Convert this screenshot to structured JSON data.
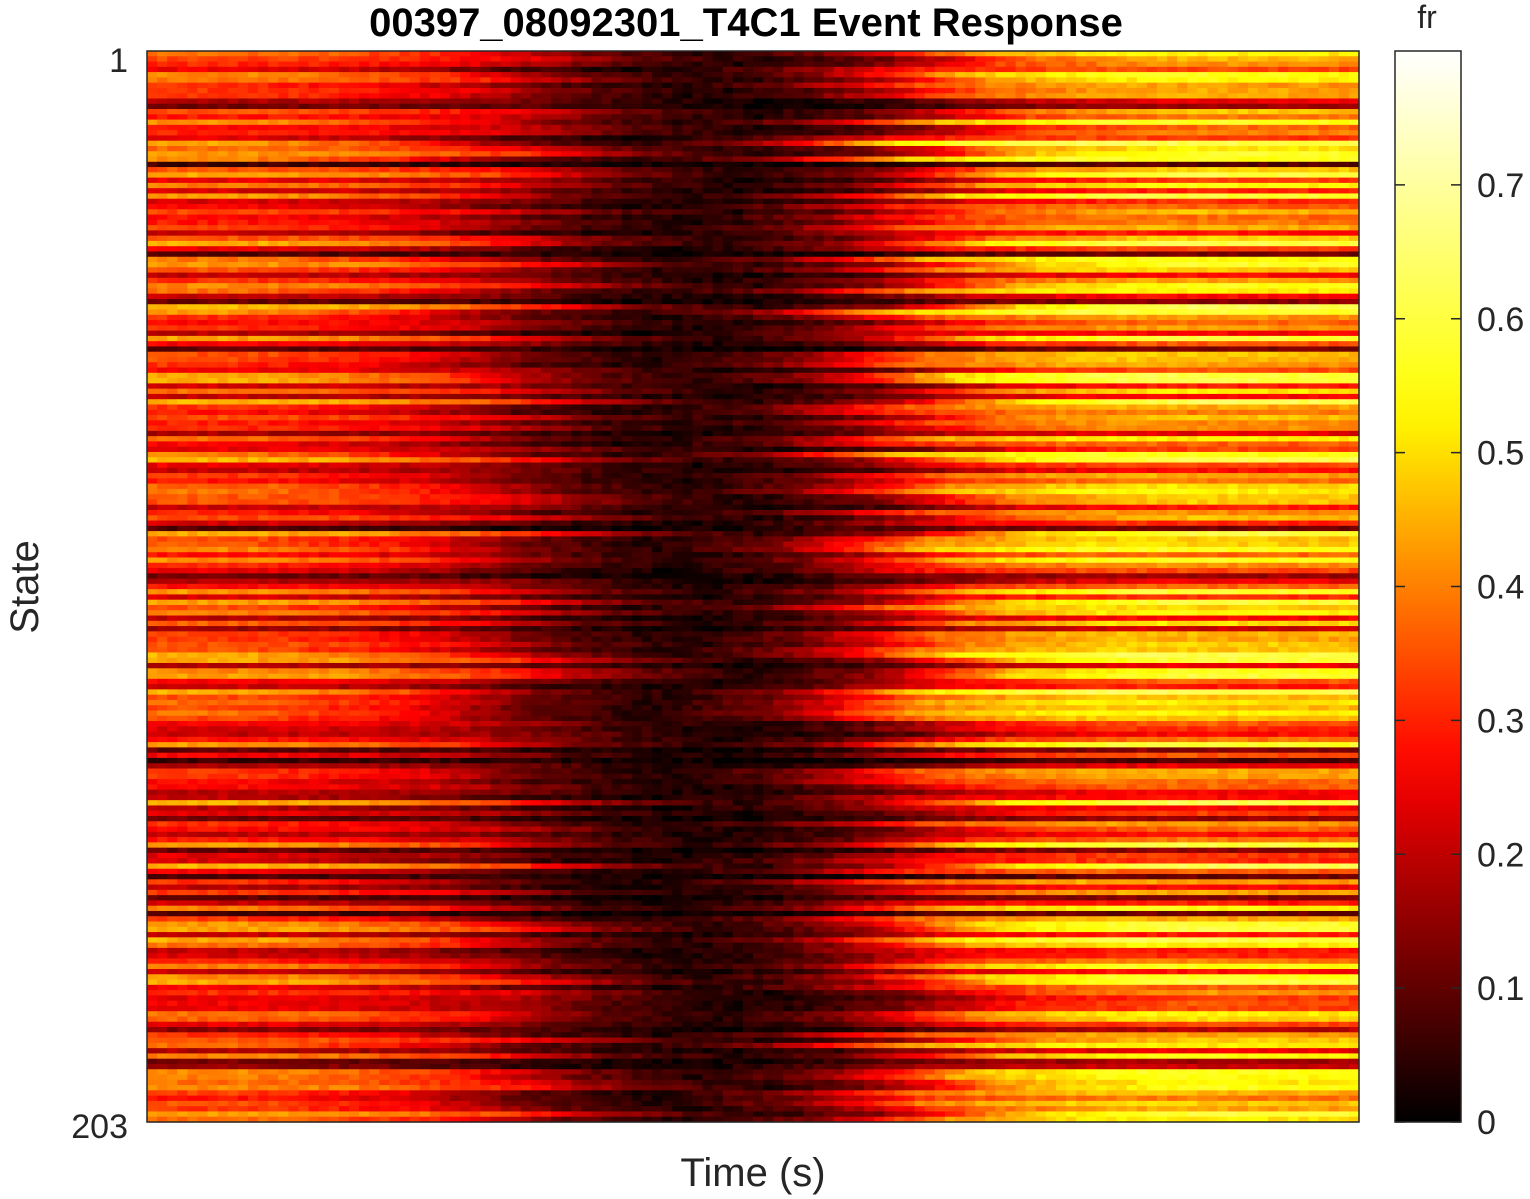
{
  "chart_data": {
    "type": "heatmap",
    "title": "00397_08092301_T4C1 Event Response",
    "xlabel": "Time (s)",
    "ylabel": "State",
    "y_tick_labels": [
      "1",
      "203"
    ],
    "rows": 203,
    "columns": 120,
    "row_range": [
      1,
      203
    ],
    "value_range": [
      0,
      0.8
    ],
    "colormap": "hot",
    "colormap_stops": [
      "#000000",
      "#ff0000",
      "#ffff00",
      "#ffffff"
    ],
    "colorbar": {
      "label": "fr",
      "ticks": [
        0,
        0.1,
        0.2,
        0.3,
        0.4,
        0.5,
        0.6,
        0.7
      ],
      "tick_labels": [
        "0",
        "0.1",
        "0.2",
        "0.3",
        "0.4",
        "0.5",
        "0.6",
        "0.7"
      ],
      "range": [
        0,
        0.8
      ]
    },
    "column_profile": {
      "description_values": "approximate mean firing rate per column, sampled at column fractions",
      "fractions": [
        0.0,
        0.12,
        0.25,
        0.36,
        0.46,
        0.56,
        0.68,
        0.82,
        1.0
      ],
      "mean_fr": [
        0.32,
        0.31,
        0.24,
        0.09,
        0.03,
        0.11,
        0.36,
        0.44,
        0.42
      ]
    }
  }
}
